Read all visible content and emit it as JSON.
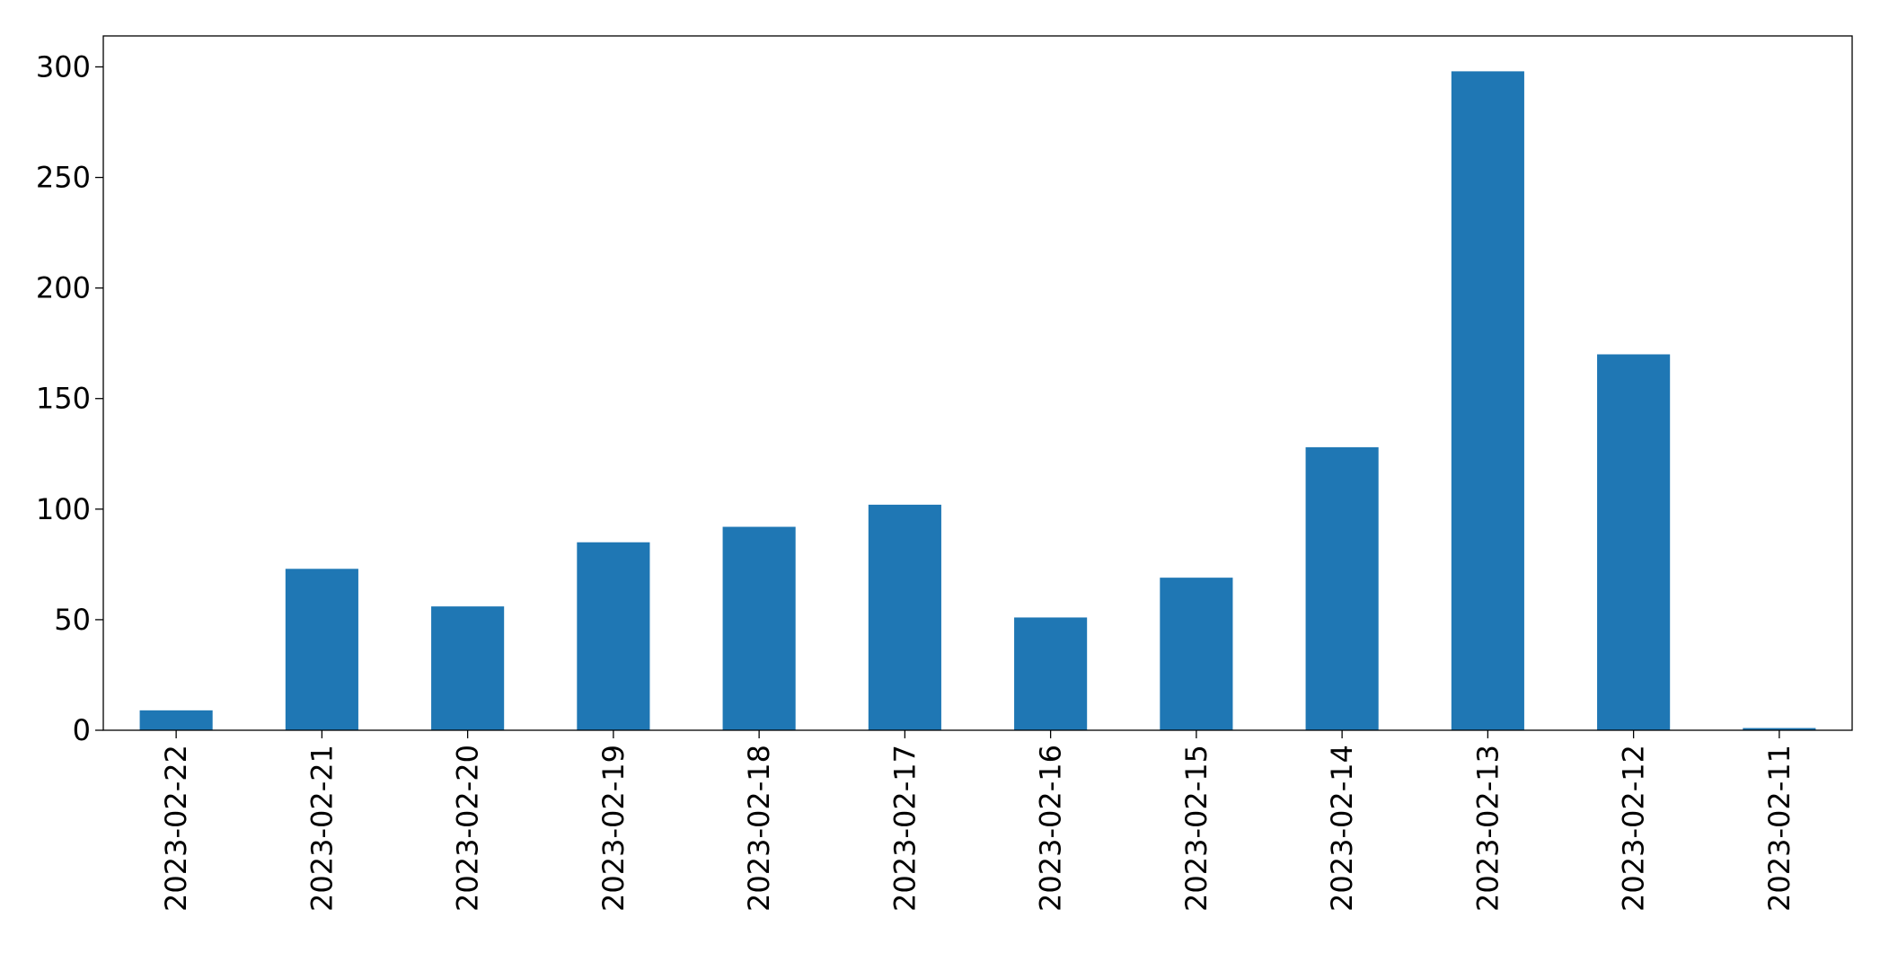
{
  "chart_data": {
    "type": "bar",
    "categories": [
      "2023-02-22",
      "2023-02-21",
      "2023-02-20",
      "2023-02-19",
      "2023-02-18",
      "2023-02-17",
      "2023-02-16",
      "2023-02-15",
      "2023-02-14",
      "2023-02-13",
      "2023-02-12",
      "2023-02-11"
    ],
    "values": [
      9,
      73,
      56,
      85,
      92,
      102,
      51,
      69,
      128,
      298,
      170,
      1
    ],
    "color": "#1f77b4",
    "ylim": [
      0,
      314
    ],
    "yticks": [
      0,
      50,
      100,
      150,
      200,
      250,
      300
    ],
    "grid": false
  }
}
